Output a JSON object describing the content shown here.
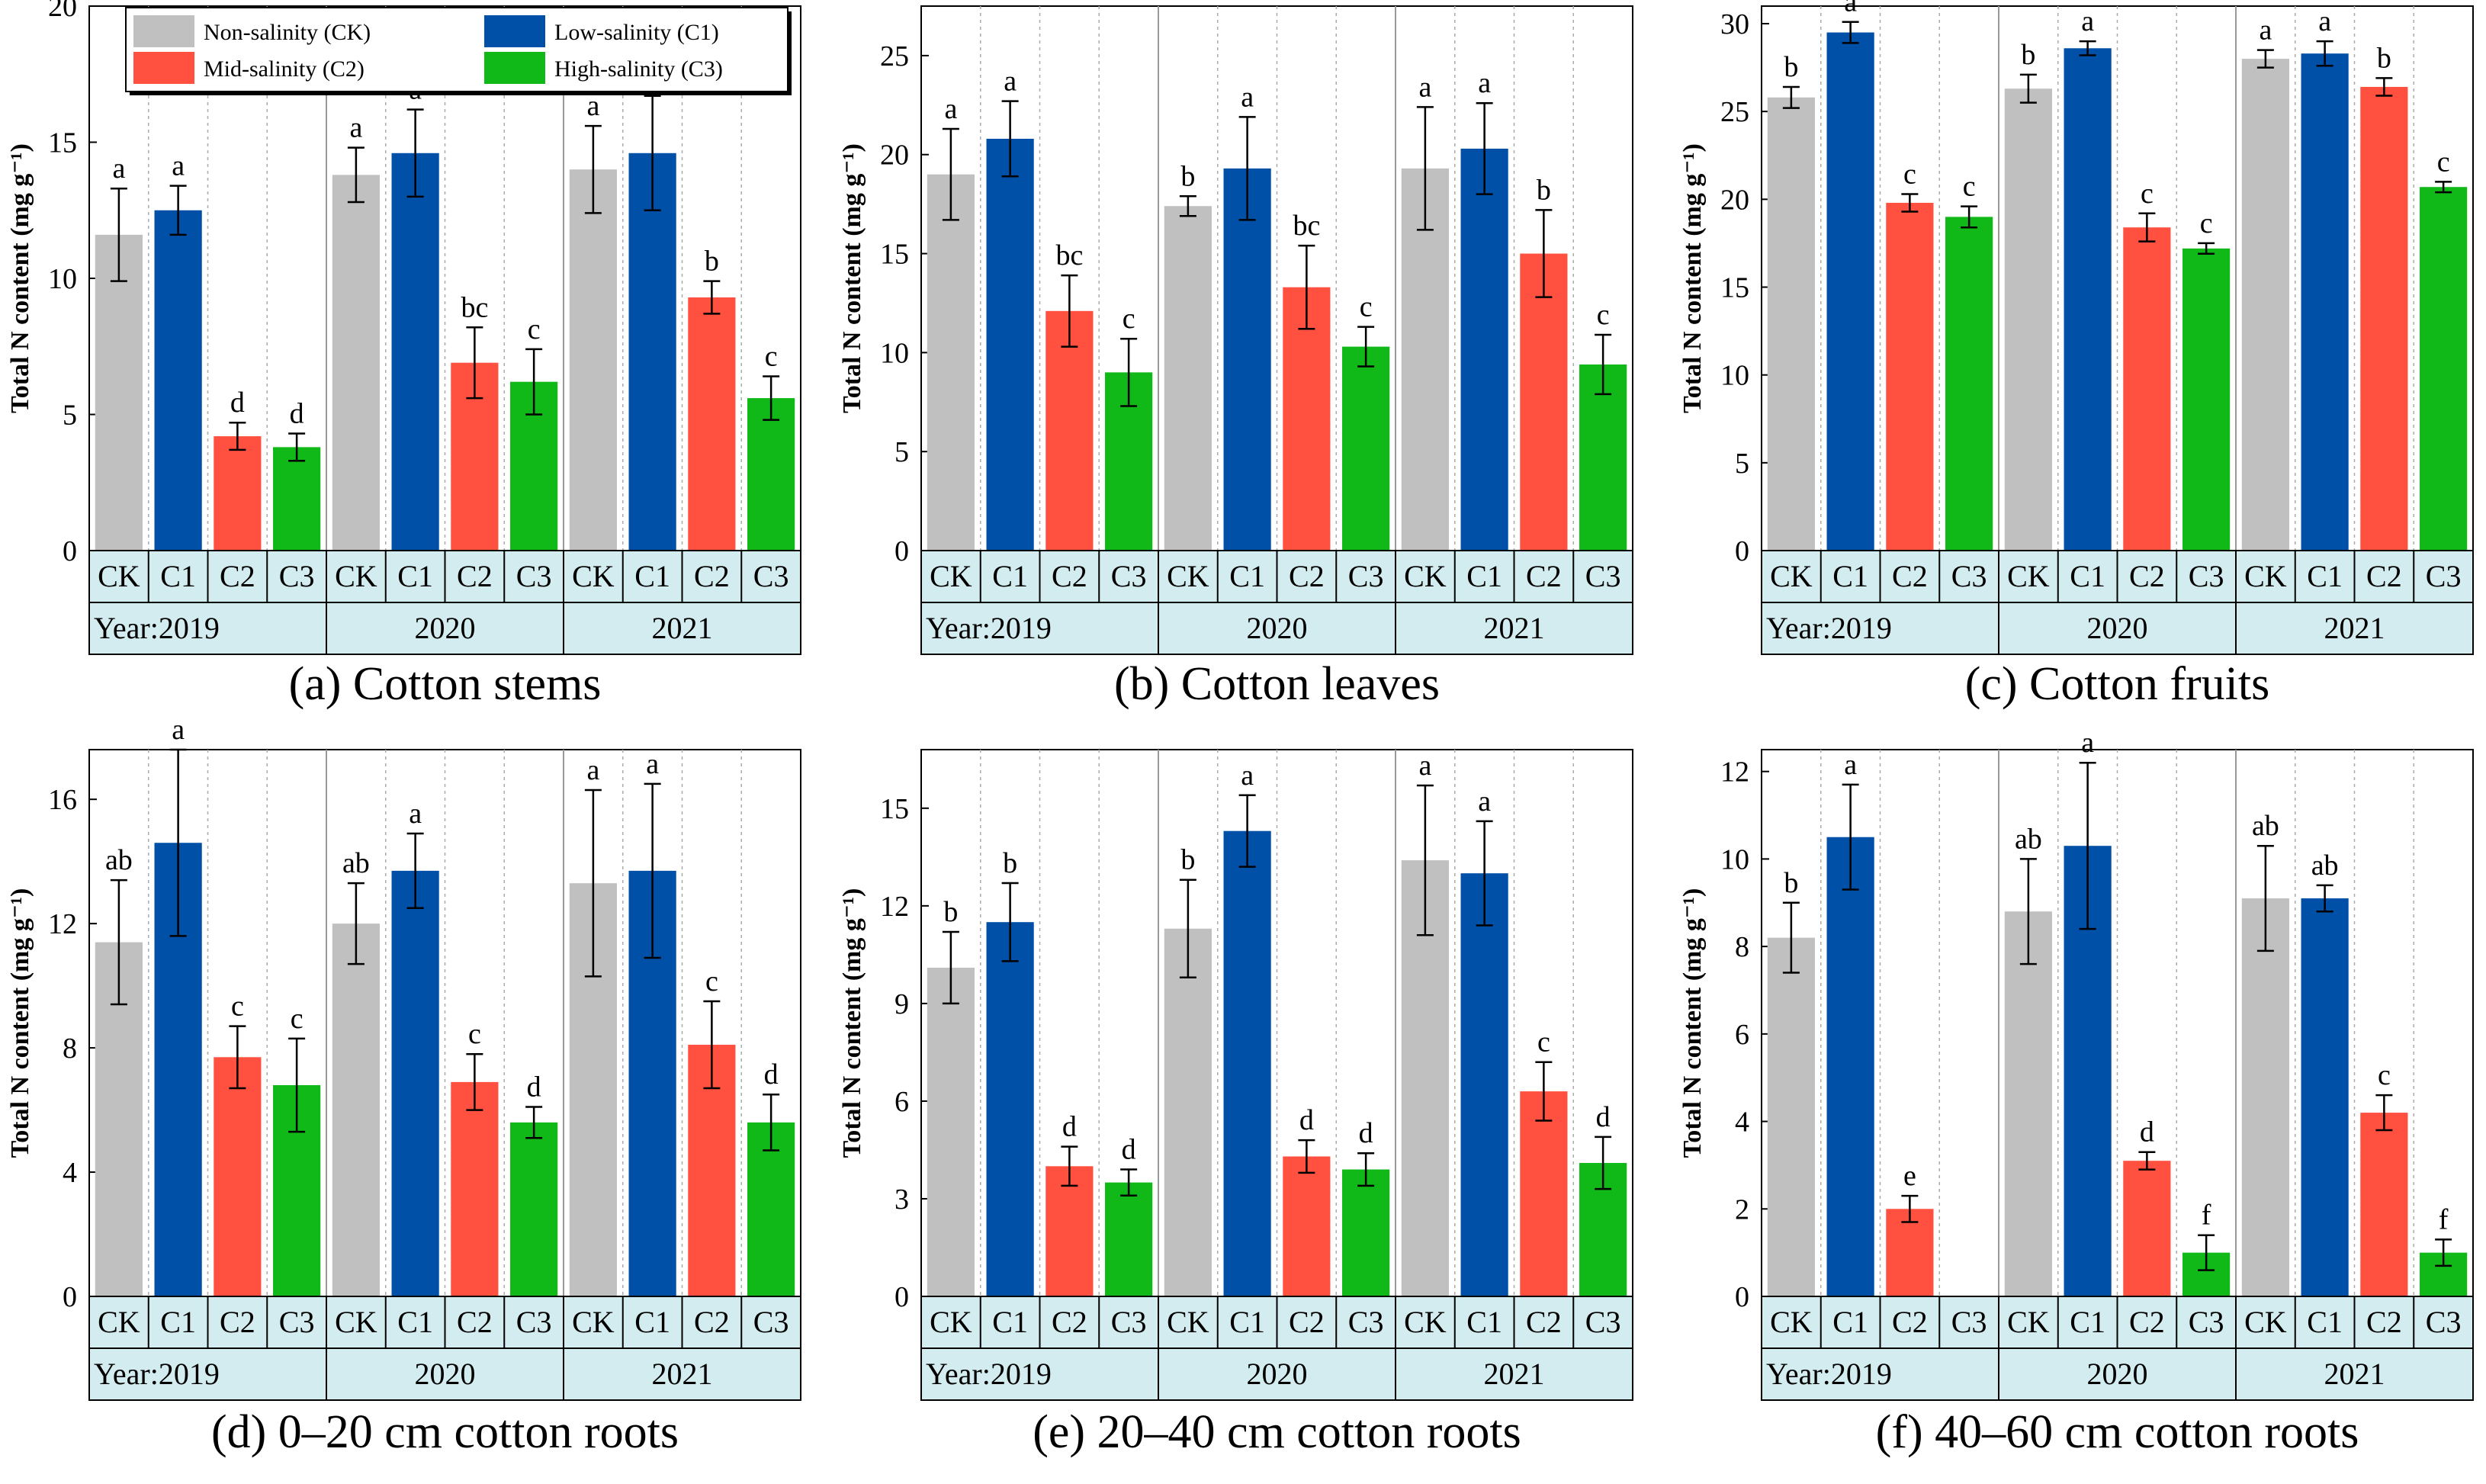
{
  "legend": {
    "entries": [
      {
        "key": "CK",
        "label": "Non-salinity (CK)",
        "color": "#c0c0c0"
      },
      {
        "key": "C1",
        "label": "Low-salinity (C1)",
        "color": "#0050a8"
      },
      {
        "key": "C2",
        "label": "Mid-salinity (C2)",
        "color": "#ff5040"
      },
      {
        "key": "C3",
        "label": "High-salinity (C3)",
        "color": "#10b818"
      }
    ]
  },
  "strip": {
    "year_prefix": "Year:",
    "years": [
      "2019",
      "2020",
      "2021"
    ]
  },
  "chart_data": [
    {
      "type": "bar",
      "id": "a",
      "title": "(a) Cotton stems",
      "ylabel": "Total N content (mg g⁻¹)",
      "ylim": [
        0,
        20
      ],
      "yticks": [
        0,
        5,
        10,
        15,
        20
      ],
      "categories": [
        "CK",
        "C1",
        "C2",
        "C3",
        "CK",
        "C1",
        "C2",
        "C3",
        "CK",
        "C1",
        "C2",
        "C3"
      ],
      "years": [
        "2019",
        "2019",
        "2019",
        "2019",
        "2020",
        "2020",
        "2020",
        "2020",
        "2021",
        "2021",
        "2021",
        "2021"
      ],
      "values": [
        11.6,
        12.5,
        4.2,
        3.8,
        13.8,
        14.6,
        6.9,
        6.2,
        14.0,
        14.6,
        9.3,
        5.6
      ],
      "errors": [
        1.7,
        0.9,
        0.5,
        0.5,
        1.0,
        1.6,
        1.3,
        1.2,
        1.6,
        2.1,
        0.6,
        0.8
      ],
      "letters": [
        "a",
        "a",
        "d",
        "d",
        "a",
        "a",
        "bc",
        "c",
        "a",
        "a",
        "b",
        "c"
      ]
    },
    {
      "type": "bar",
      "id": "b",
      "title": "(b) Cotton leaves",
      "ylabel": "Total N content (mg g⁻¹)",
      "ylim": [
        0,
        27.5
      ],
      "yticks": [
        0,
        5,
        10,
        15,
        20,
        25
      ],
      "categories": [
        "CK",
        "C1",
        "C2",
        "C3",
        "CK",
        "C1",
        "C2",
        "C3",
        "CK",
        "C1",
        "C2",
        "C3"
      ],
      "years": [
        "2019",
        "2019",
        "2019",
        "2019",
        "2020",
        "2020",
        "2020",
        "2020",
        "2021",
        "2021",
        "2021",
        "2021"
      ],
      "values": [
        19.0,
        20.8,
        12.1,
        9.0,
        17.4,
        19.3,
        13.3,
        10.3,
        19.3,
        20.3,
        15.0,
        9.4
      ],
      "errors": [
        2.3,
        1.9,
        1.8,
        1.7,
        0.5,
        2.6,
        2.1,
        1.0,
        3.1,
        2.3,
        2.2,
        1.5
      ],
      "letters": [
        "a",
        "a",
        "bc",
        "c",
        "b",
        "a",
        "bc",
        "c",
        "a",
        "a",
        "b",
        "c"
      ]
    },
    {
      "type": "bar",
      "id": "c",
      "title": "(c) Cotton fruits",
      "ylabel": "Total N content (mg g⁻¹)",
      "ylim": [
        0,
        31
      ],
      "yticks": [
        0,
        5,
        10,
        15,
        20,
        25,
        30
      ],
      "categories": [
        "CK",
        "C1",
        "C2",
        "C3",
        "CK",
        "C1",
        "C2",
        "C3",
        "CK",
        "C1",
        "C2",
        "C3"
      ],
      "years": [
        "2019",
        "2019",
        "2019",
        "2019",
        "2020",
        "2020",
        "2020",
        "2020",
        "2021",
        "2021",
        "2021",
        "2021"
      ],
      "values": [
        25.8,
        29.5,
        19.8,
        19.0,
        26.3,
        28.6,
        18.4,
        17.2,
        28.0,
        28.3,
        26.4,
        20.7
      ],
      "errors": [
        0.6,
        0.6,
        0.5,
        0.6,
        0.8,
        0.4,
        0.8,
        0.3,
        0.5,
        0.7,
        0.5,
        0.3
      ],
      "letters": [
        "b",
        "a",
        "c",
        "c",
        "b",
        "a",
        "c",
        "c",
        "a",
        "a",
        "b",
        "c"
      ]
    },
    {
      "type": "bar",
      "id": "d",
      "title": "(d) 0–20 cm cotton roots",
      "ylabel": "Total N content (mg g⁻¹)",
      "ylim": [
        0,
        17.6
      ],
      "yticks": [
        0,
        4,
        8,
        12,
        16
      ],
      "categories": [
        "CK",
        "C1",
        "C2",
        "C3",
        "CK",
        "C1",
        "C2",
        "C3",
        "CK",
        "C1",
        "C2",
        "C3"
      ],
      "years": [
        "2019",
        "2019",
        "2019",
        "2019",
        "2020",
        "2020",
        "2020",
        "2020",
        "2021",
        "2021",
        "2021",
        "2021"
      ],
      "values": [
        11.4,
        14.6,
        7.7,
        6.8,
        12.0,
        13.7,
        6.9,
        5.6,
        13.3,
        13.7,
        8.1,
        5.6
      ],
      "errors": [
        2.0,
        3.0,
        1.0,
        1.5,
        1.3,
        1.2,
        0.9,
        0.5,
        3.0,
        2.8,
        1.4,
        0.9
      ],
      "letters": [
        "ab",
        "a",
        "c",
        "c",
        "ab",
        "a",
        "c",
        "d",
        "a",
        "a",
        "c",
        "d"
      ]
    },
    {
      "type": "bar",
      "id": "e",
      "title": "(e) 20–40 cm cotton roots",
      "ylabel": "Total N content (mg g⁻¹)",
      "ylim": [
        0,
        16.8
      ],
      "yticks": [
        0,
        3,
        6,
        9,
        12,
        15
      ],
      "categories": [
        "CK",
        "C1",
        "C2",
        "C3",
        "CK",
        "C1",
        "C2",
        "C3",
        "CK",
        "C1",
        "C2",
        "C3"
      ],
      "years": [
        "2019",
        "2019",
        "2019",
        "2019",
        "2020",
        "2020",
        "2020",
        "2020",
        "2021",
        "2021",
        "2021",
        "2021"
      ],
      "values": [
        10.1,
        11.5,
        4.0,
        3.5,
        11.3,
        14.3,
        4.3,
        3.9,
        13.4,
        13.0,
        6.3,
        4.1
      ],
      "errors": [
        1.1,
        1.2,
        0.6,
        0.4,
        1.5,
        1.1,
        0.5,
        0.5,
        2.3,
        1.6,
        0.9,
        0.8
      ],
      "letters": [
        "b",
        "b",
        "d",
        "d",
        "b",
        "a",
        "d",
        "d",
        "a",
        "a",
        "c",
        "d"
      ]
    },
    {
      "type": "bar",
      "id": "f",
      "title": "(f) 40–60 cm cotton roots",
      "ylabel": "Total N content (mg g⁻¹)",
      "ylim": [
        0,
        12.5
      ],
      "yticks": [
        0,
        2,
        4,
        6,
        8,
        10,
        12
      ],
      "categories": [
        "CK",
        "C1",
        "C2",
        "C3",
        "CK",
        "C1",
        "C2",
        "C3",
        "CK",
        "C1",
        "C2",
        "C3"
      ],
      "years": [
        "2019",
        "2019",
        "2019",
        "2019",
        "2020",
        "2020",
        "2020",
        "2020",
        "2021",
        "2021",
        "2021",
        "2021"
      ],
      "values": [
        8.2,
        10.5,
        2.0,
        null,
        8.8,
        10.3,
        3.1,
        1.0,
        9.1,
        9.1,
        4.2,
        1.0
      ],
      "errors": [
        0.8,
        1.2,
        0.3,
        null,
        1.2,
        1.9,
        0.2,
        0.4,
        1.2,
        0.3,
        0.4,
        0.3
      ],
      "letters": [
        "b",
        "a",
        "e",
        "",
        "ab",
        "a",
        "d",
        "f",
        "ab",
        "ab",
        "c",
        "f"
      ]
    }
  ]
}
